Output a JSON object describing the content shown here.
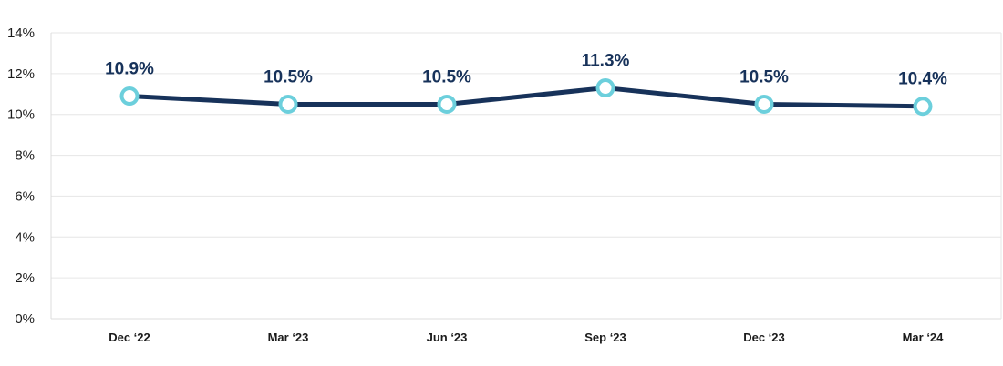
{
  "chart_data": {
    "type": "line",
    "title": "",
    "xlabel": "",
    "ylabel": "",
    "categories": [
      "Dec ‘22",
      "Mar ‘23",
      "Jun ‘23",
      "Sep ‘23",
      "Dec ‘23",
      "Mar ‘24"
    ],
    "series": [
      {
        "values": [
          10.9,
          10.5,
          10.5,
          11.3,
          10.5,
          10.4
        ],
        "data_labels": [
          "10.9%",
          "10.5%",
          "10.5%",
          "11.3%",
          "10.5%",
          "10.4%"
        ]
      }
    ],
    "ylim": [
      0,
      14
    ],
    "yticks": [
      0,
      2,
      4,
      6,
      8,
      10,
      12,
      14
    ],
    "ytick_labels": [
      "0%",
      "2%",
      "4%",
      "6%",
      "8%",
      "10%",
      "12%",
      "14%"
    ],
    "grid": true,
    "legend": "none",
    "colors": {
      "line": "#17325a",
      "marker_stroke": "#6ccfdc",
      "marker_fill": "#ffffff",
      "label_text": "#17325a",
      "grid": "#e6e6e6",
      "axis": "#dcdcdc"
    }
  }
}
